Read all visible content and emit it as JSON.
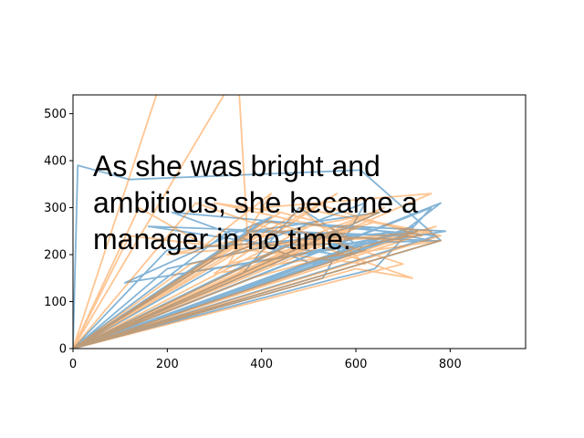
{
  "overlay_text_lines": [
    "As she was bright and",
    "ambitious, she became a",
    "manager in no time."
  ],
  "chart_data": {
    "type": "line",
    "title": "",
    "xlabel": "",
    "ylabel": "",
    "xlim": [
      0,
      960
    ],
    "ylim": [
      0,
      540
    ],
    "xticks": [
      0,
      200,
      400,
      600,
      800
    ],
    "yticks": [
      0,
      100,
      200,
      300,
      400,
      500
    ],
    "grid": false,
    "legend": "none",
    "series": [
      {
        "color": "#1f77b4",
        "alpha": 0.55,
        "x": [
          0,
          10,
          120,
          610,
          780,
          0,
          560,
          640,
          760,
          0,
          470,
          720,
          200,
          0,
          330,
          690,
          780,
          0,
          420,
          110,
          600,
          0,
          720,
          510,
          210,
          770,
          0,
          360,
          480,
          620,
          0,
          500,
          760,
          600,
          200,
          0,
          300,
          620,
          530,
          0,
          660,
          420,
          730,
          0,
          400,
          790,
          300,
          0,
          560,
          160,
          700,
          0,
          450,
          780,
          0,
          380,
          650,
          0
        ],
        "y": [
          0,
          390,
          360,
          380,
          230,
          0,
          150,
          170,
          300,
          0,
          200,
          250,
          210,
          0,
          250,
          240,
          310,
          0,
          280,
          140,
          220,
          0,
          260,
          180,
          290,
          240,
          0,
          160,
          300,
          210,
          0,
          240,
          230,
          260,
          170,
          0,
          190,
          310,
          150,
          0,
          230,
          190,
          250,
          0,
          270,
          250,
          170,
          0,
          200,
          260,
          240,
          0,
          220,
          230,
          0,
          250,
          290,
          0
        ]
      },
      {
        "color": "#ff7f0e",
        "alpha": 0.45,
        "x": [
          0,
          190,
          0,
          350,
          370,
          0,
          760,
          400,
          520,
          0,
          140,
          280,
          420,
          330,
          580,
          0,
          460,
          640,
          740,
          0,
          250,
          610,
          0,
          600,
          720,
          260,
          0,
          780,
          480,
          620,
          120,
          0,
          520,
          700,
          0,
          440,
          300,
          570,
          0,
          770,
          380,
          0,
          510,
          740,
          350,
          0,
          650,
          200,
          760,
          0,
          560,
          300,
          780,
          0,
          700,
          420,
          0,
          480,
          660,
          0
        ],
        "y": [
          0,
          580,
          0,
          590,
          240,
          0,
          330,
          300,
          270,
          0,
          300,
          220,
          330,
          180,
          240,
          0,
          210,
          270,
          250,
          0,
          180,
          260,
          0,
          170,
          150,
          310,
          0,
          240,
          300,
          180,
          240,
          0,
          240,
          230,
          0,
          290,
          310,
          250,
          0,
          260,
          150,
          0,
          310,
          240,
          220,
          0,
          290,
          200,
          250,
          0,
          330,
          160,
          230,
          0,
          180,
          270,
          0,
          230,
          300,
          0
        ]
      }
    ]
  }
}
